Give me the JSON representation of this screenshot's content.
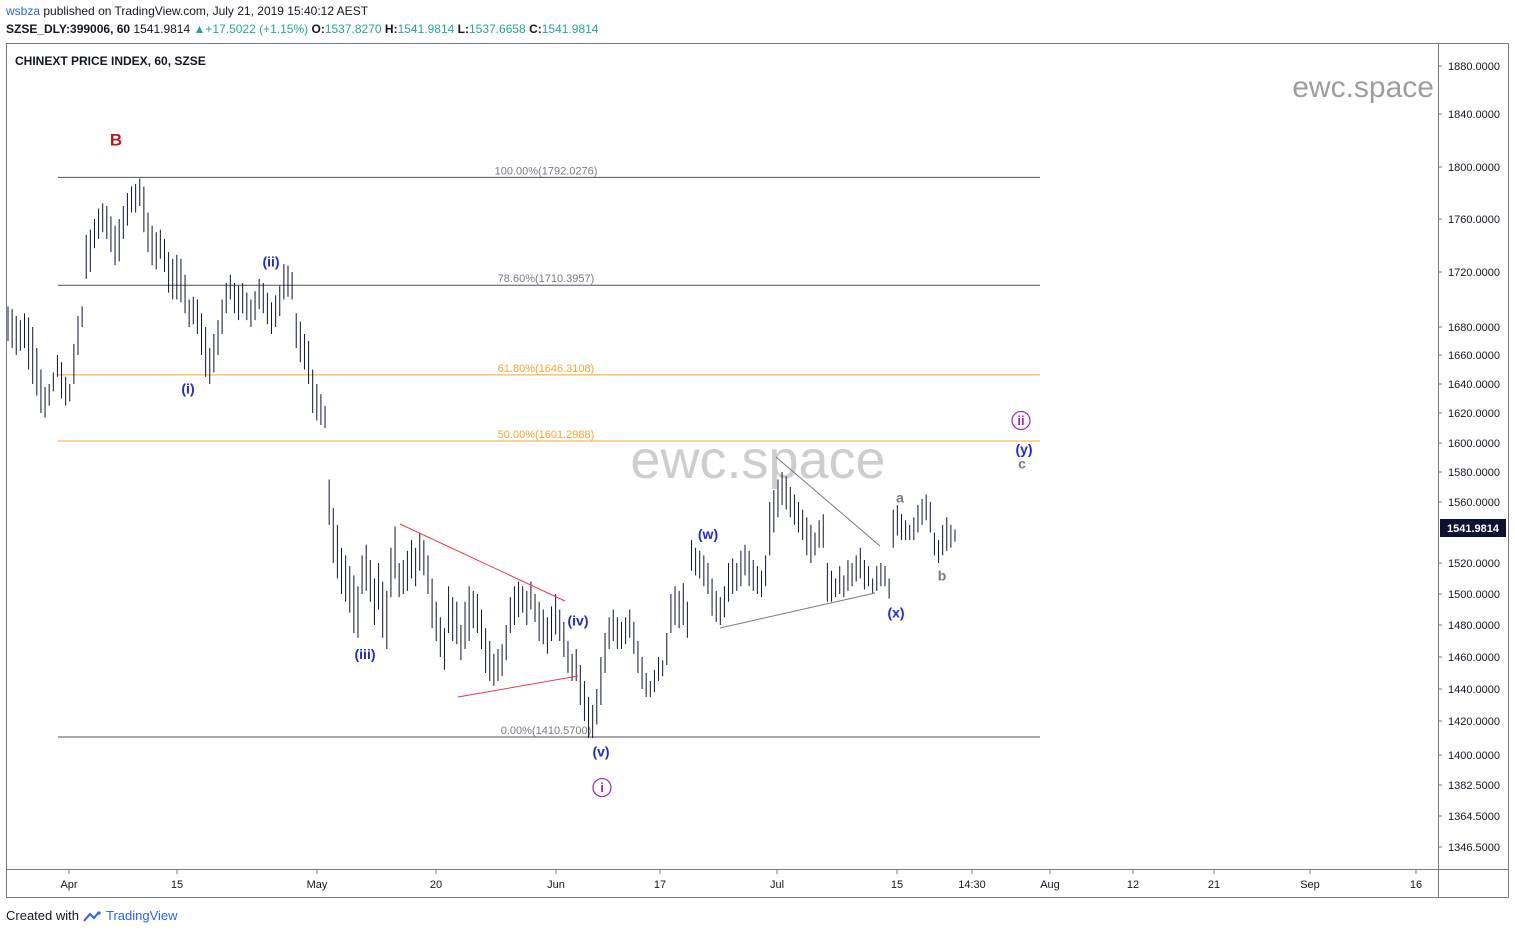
{
  "header": {
    "user": "wsbza",
    "published": "published on TradingView.com, July 21, 2019 15:40:12 AEST",
    "symbol": "SZSE_DLY:399006, 60",
    "last": "1541.9814",
    "change_arrow": "▲",
    "change": "+17.5022 (+1.15%)",
    "o_label": "O:",
    "o_value": "1537.8270",
    "h_label": "H:",
    "h_value": "1541.9814",
    "l_label": "L:",
    "l_value": "1537.6658",
    "c_label": "C:",
    "c_value": "1541.9814"
  },
  "legend_title": "CHINEXT PRICE INDEX, 60, SZSE",
  "watermark": "ewc.space",
  "footer": {
    "created": "Created with",
    "brand": "TradingView",
    "logo_icon": "tradingview-logo-icon"
  },
  "colors": {
    "bars": "#0d1333",
    "fib_gray": "#787b86",
    "fib_orange": "#f7a530",
    "red_line": "#f23645",
    "wave_blue": "#1f2ad1",
    "wave_purple": "#9c27b0",
    "wave_red": "#b71c1c",
    "price_label_bg": "#0c1233"
  },
  "chart_data": {
    "type": "ohlc",
    "title": "CHINEXT PRICE INDEX, 60, SZSE",
    "last_price": 1541.9814,
    "y_ticks": [
      "1880.0000",
      "1840.0000",
      "1800.0000",
      "1760.0000",
      "1720.0000",
      "1680.0000",
      "1660.0000",
      "1640.0000",
      "1620.0000",
      "1600.0000",
      "1580.0000",
      "1560.0000",
      "1520.0000",
      "1500.0000",
      "1480.0000",
      "1460.0000",
      "1440.0000",
      "1420.0000",
      "1400.0000",
      "1382.5000",
      "1364.5000",
      "1346.5000"
    ],
    "x_ticks": [
      "Apr",
      "15",
      "May",
      "20",
      "Jun",
      "17",
      "Jul",
      "15",
      "14:30",
      "Aug",
      "12",
      "21",
      "Sep",
      "16"
    ],
    "fibonacci": [
      {
        "label": "100.00%(1792.0276)",
        "price": 1792.0276,
        "color": "gray"
      },
      {
        "label": "78.60%(1710.3957)",
        "price": 1710.3957,
        "color": "gray"
      },
      {
        "label": "61.80%(1646.3108)",
        "price": 1646.3108,
        "color": "orange"
      },
      {
        "label": "50.00%(1601.2988)",
        "price": 1601.2988,
        "color": "orange"
      },
      {
        "label": "0.00%(1410.5700)",
        "price": 1410.57,
        "color": "gray"
      }
    ],
    "wave_labels": [
      {
        "text": "B",
        "price": 1820,
        "color": "red"
      },
      {
        "text": "(i)",
        "price": 1637,
        "color": "blue"
      },
      {
        "text": "(ii)",
        "price": 1728,
        "color": "blue"
      },
      {
        "text": "(iii)",
        "price": 1462,
        "color": "blue"
      },
      {
        "text": "(iv)",
        "price": 1483,
        "color": "blue"
      },
      {
        "text": "(v)",
        "price": 1402,
        "color": "blue"
      },
      {
        "text": "i",
        "price": 1381,
        "color": "purple",
        "circled": true
      },
      {
        "text": "(w)",
        "price": 1539,
        "color": "blue"
      },
      {
        "text": "(x)",
        "price": 1488,
        "color": "blue"
      },
      {
        "text": "a",
        "price": 1563,
        "color": "gray"
      },
      {
        "text": "b",
        "price": 1512,
        "color": "gray"
      },
      {
        "text": "ii",
        "price": 1615,
        "color": "purple",
        "circled": true
      },
      {
        "text": "(y)",
        "price": 1596,
        "color": "blue"
      },
      {
        "text": "c",
        "price": 1586,
        "color": "gray"
      }
    ],
    "bars": [
      [
        1695,
        1670
      ],
      [
        1693,
        1665
      ],
      [
        1688,
        1660
      ],
      [
        1685,
        1663
      ],
      [
        1690,
        1665
      ],
      [
        1687,
        1650
      ],
      [
        1680,
        1640
      ],
      [
        1665,
        1632
      ],
      [
        1650,
        1620
      ],
      [
        1638,
        1617
      ],
      [
        1640,
        1625
      ],
      [
        1648,
        1635
      ],
      [
        1660,
        1645
      ],
      [
        1655,
        1630
      ],
      [
        1645,
        1625
      ],
      [
        1640,
        1628
      ],
      [
        1668,
        1640
      ],
      [
        1688,
        1660
      ],
      [
        1695,
        1680
      ],
      [
        1748,
        1715
      ],
      [
        1752,
        1720
      ],
      [
        1760,
        1738
      ],
      [
        1768,
        1745
      ],
      [
        1772,
        1750
      ],
      [
        1770,
        1745
      ],
      [
        1762,
        1735
      ],
      [
        1755,
        1725
      ],
      [
        1760,
        1728
      ],
      [
        1770,
        1745
      ],
      [
        1780,
        1755
      ],
      [
        1785,
        1765
      ],
      [
        1787,
        1765
      ],
      [
        1791,
        1770
      ],
      [
        1785,
        1750
      ],
      [
        1765,
        1735
      ],
      [
        1755,
        1725
      ],
      [
        1750,
        1722
      ],
      [
        1752,
        1730
      ],
      [
        1745,
        1720
      ],
      [
        1735,
        1705
      ],
      [
        1730,
        1700
      ],
      [
        1733,
        1700
      ],
      [
        1730,
        1698
      ],
      [
        1718,
        1690
      ],
      [
        1700,
        1680
      ],
      [
        1702,
        1682
      ],
      [
        1700,
        1675
      ],
      [
        1690,
        1660
      ],
      [
        1680,
        1645
      ],
      [
        1665,
        1640
      ],
      [
        1675,
        1648
      ],
      [
        1685,
        1660
      ],
      [
        1700,
        1675
      ],
      [
        1712,
        1690
      ],
      [
        1718,
        1700
      ],
      [
        1712,
        1690
      ],
      [
        1710,
        1685
      ],
      [
        1712,
        1690
      ],
      [
        1705,
        1685
      ],
      [
        1700,
        1680
      ],
      [
        1706,
        1685
      ],
      [
        1715,
        1693
      ],
      [
        1712,
        1690
      ],
      [
        1705,
        1682
      ],
      [
        1698,
        1675
      ],
      [
        1703,
        1680
      ],
      [
        1710,
        1688
      ],
      [
        1726,
        1700
      ],
      [
        1725,
        1702
      ],
      [
        1720,
        1700
      ],
      [
        1690,
        1665
      ],
      [
        1684,
        1655
      ],
      [
        1675,
        1650
      ],
      [
        1670,
        1640
      ],
      [
        1650,
        1620
      ],
      [
        1640,
        1615
      ],
      [
        1633,
        1612
      ],
      [
        1625,
        1610
      ],
      [
        1575,
        1545
      ],
      [
        1556,
        1520
      ],
      [
        1545,
        1510
      ],
      [
        1530,
        1500
      ],
      [
        1525,
        1495
      ],
      [
        1518,
        1488
      ],
      [
        1512,
        1475
      ],
      [
        1505,
        1472
      ],
      [
        1525,
        1500
      ],
      [
        1532,
        1502
      ],
      [
        1522,
        1495
      ],
      [
        1510,
        1480
      ],
      [
        1520,
        1490
      ],
      [
        1508,
        1472
      ],
      [
        1502,
        1465
      ],
      [
        1530,
        1498
      ],
      [
        1544,
        1510
      ],
      [
        1520,
        1498
      ],
      [
        1522,
        1500
      ],
      [
        1528,
        1502
      ],
      [
        1535,
        1510
      ],
      [
        1530,
        1505
      ],
      [
        1540,
        1515
      ],
      [
        1535,
        1512
      ],
      [
        1525,
        1500
      ],
      [
        1510,
        1478
      ],
      [
        1495,
        1470
      ],
      [
        1485,
        1460
      ],
      [
        1478,
        1452
      ],
      [
        1505,
        1475
      ],
      [
        1498,
        1470
      ],
      [
        1495,
        1468
      ],
      [
        1480,
        1458
      ],
      [
        1495,
        1465
      ],
      [
        1505,
        1470
      ],
      [
        1502,
        1478
      ],
      [
        1500,
        1475
      ],
      [
        1490,
        1465
      ],
      [
        1478,
        1450
      ],
      [
        1470,
        1445
      ],
      [
        1462,
        1442
      ],
      [
        1465,
        1445
      ],
      [
        1468,
        1448
      ],
      [
        1480,
        1458
      ],
      [
        1498,
        1475
      ],
      [
        1505,
        1480
      ],
      [
        1508,
        1485
      ],
      [
        1505,
        1488
      ],
      [
        1502,
        1480
      ],
      [
        1508,
        1490
      ],
      [
        1500,
        1482
      ],
      [
        1495,
        1470
      ],
      [
        1490,
        1468
      ],
      [
        1485,
        1462
      ],
      [
        1492,
        1470
      ],
      [
        1500,
        1474
      ],
      [
        1490,
        1470
      ],
      [
        1482,
        1460
      ],
      [
        1470,
        1450
      ],
      [
        1462,
        1445
      ],
      [
        1465,
        1445
      ],
      [
        1455,
        1430
      ],
      [
        1445,
        1420
      ],
      [
        1435,
        1410
      ],
      [
        1430,
        1410
      ],
      [
        1440,
        1418
      ],
      [
        1460,
        1430
      ],
      [
        1475,
        1450
      ],
      [
        1485,
        1465
      ],
      [
        1490,
        1470
      ],
      [
        1485,
        1465
      ],
      [
        1482,
        1465
      ],
      [
        1485,
        1468
      ],
      [
        1490,
        1472
      ],
      [
        1482,
        1462
      ],
      [
        1470,
        1450
      ],
      [
        1460,
        1440
      ],
      [
        1450,
        1435
      ],
      [
        1445,
        1435
      ],
      [
        1452,
        1438
      ],
      [
        1460,
        1445
      ],
      [
        1458,
        1448
      ],
      [
        1475,
        1455
      ],
      [
        1500,
        1475
      ],
      [
        1505,
        1480
      ],
      [
        1502,
        1478
      ],
      [
        1507,
        1480
      ],
      [
        1495,
        1472
      ],
      [
        1535,
        1515
      ],
      [
        1530,
        1512
      ],
      [
        1528,
        1510
      ],
      [
        1525,
        1505
      ],
      [
        1520,
        1500
      ],
      [
        1510,
        1486
      ],
      [
        1502,
        1482
      ],
      [
        1498,
        1480
      ],
      [
        1505,
        1485
      ],
      [
        1520,
        1495
      ],
      [
        1523,
        1500
      ],
      [
        1520,
        1502
      ],
      [
        1528,
        1505
      ],
      [
        1532,
        1512
      ],
      [
        1528,
        1505
      ],
      [
        1522,
        1502
      ],
      [
        1518,
        1500
      ],
      [
        1515,
        1498
      ],
      [
        1525,
        1505
      ],
      [
        1560,
        1525
      ],
      [
        1568,
        1540
      ],
      [
        1575,
        1550
      ],
      [
        1580,
        1558
      ],
      [
        1577,
        1555
      ],
      [
        1570,
        1550
      ],
      [
        1565,
        1545
      ],
      [
        1560,
        1540
      ],
      [
        1555,
        1535
      ],
      [
        1550,
        1525
      ],
      [
        1545,
        1520
      ],
      [
        1540,
        1525
      ],
      [
        1548,
        1530
      ],
      [
        1552,
        1530
      ],
      [
        1520,
        1495
      ],
      [
        1515,
        1495
      ],
      [
        1510,
        1498
      ],
      [
        1518,
        1500
      ],
      [
        1512,
        1498
      ],
      [
        1522,
        1502
      ],
      [
        1520,
        1505
      ],
      [
        1525,
        1508
      ],
      [
        1530,
        1510
      ],
      [
        1522,
        1503
      ],
      [
        1518,
        1505
      ],
      [
        1510,
        1500
      ],
      [
        1518,
        1502
      ],
      [
        1520,
        1505
      ],
      [
        1518,
        1505
      ],
      [
        1510,
        1497
      ],
      [
        1555,
        1530
      ],
      [
        1558,
        1538
      ],
      [
        1552,
        1535
      ],
      [
        1548,
        1535
      ],
      [
        1545,
        1535
      ],
      [
        1550,
        1535
      ],
      [
        1558,
        1540
      ],
      [
        1562,
        1545
      ],
      [
        1565,
        1548
      ],
      [
        1560,
        1540
      ],
      [
        1540,
        1525
      ],
      [
        1535,
        1520
      ],
      [
        1545,
        1525
      ],
      [
        1550,
        1528
      ],
      [
        1545,
        1530
      ],
      [
        1542,
        1534
      ]
    ]
  }
}
